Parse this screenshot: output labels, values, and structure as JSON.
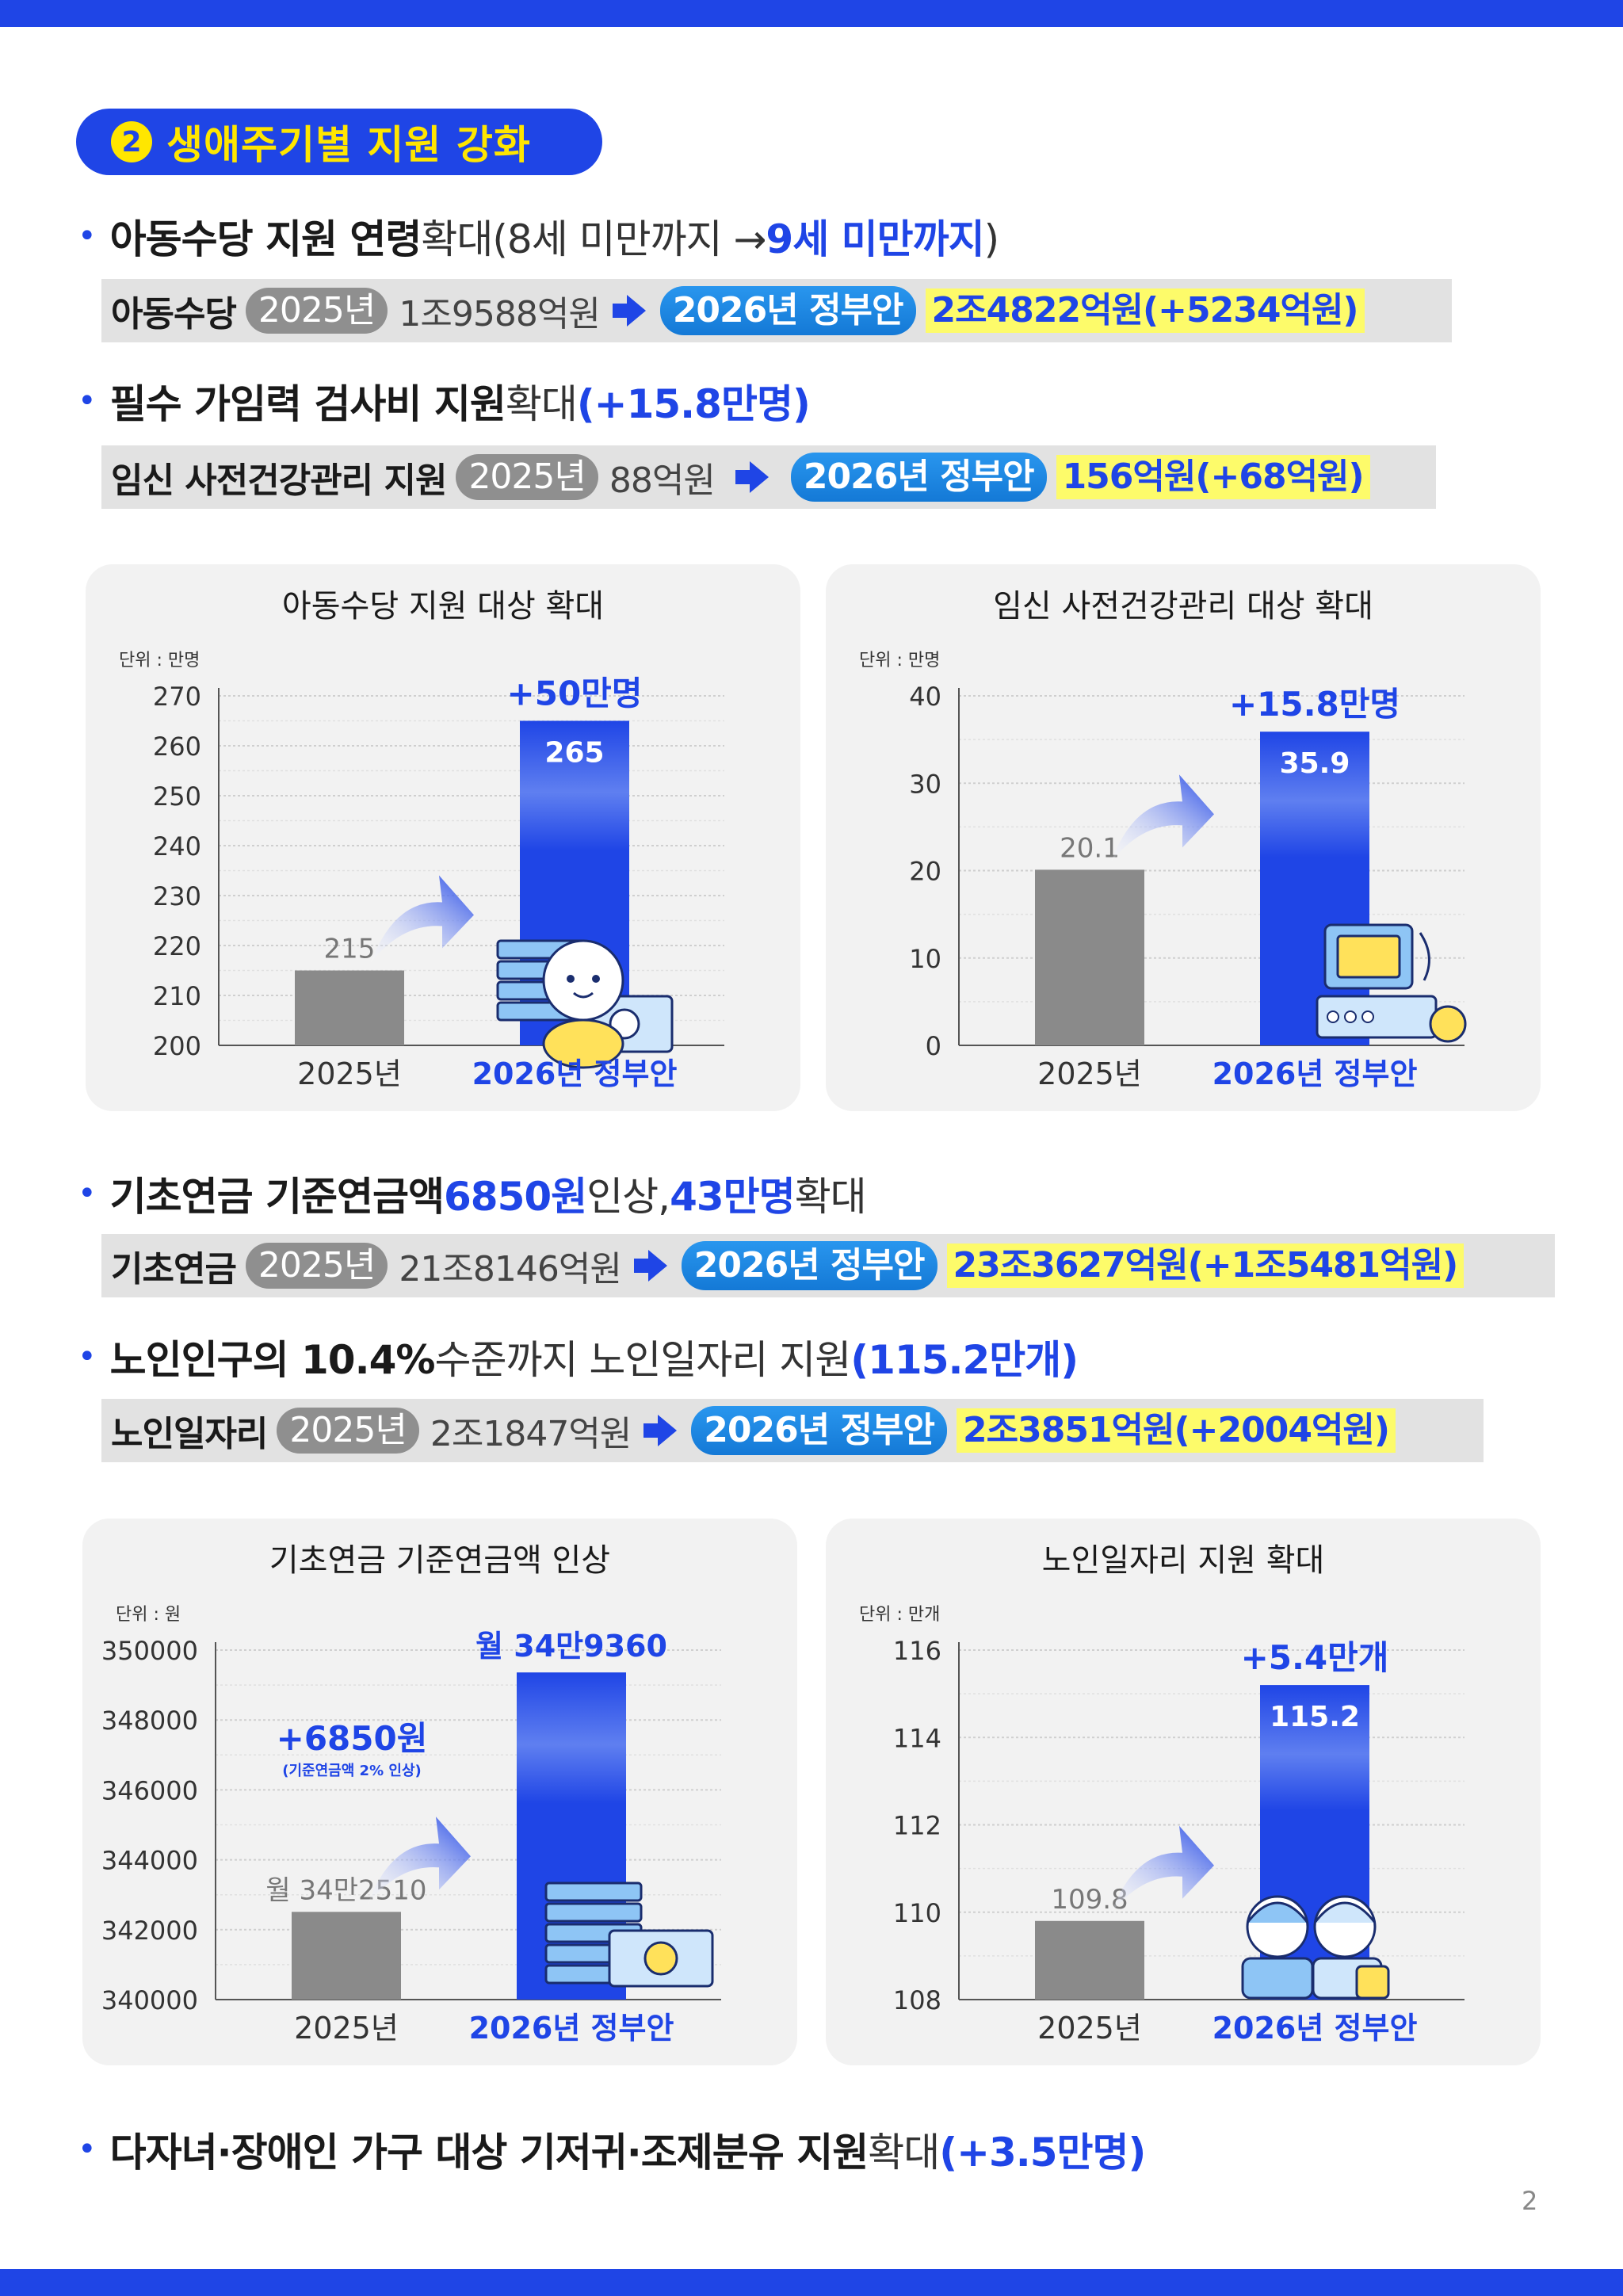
{
  "section": {
    "number": "2",
    "title": "생애주기별 지원 강화"
  },
  "bullets": {
    "b1": {
      "bold": "아동수당 지원 연령",
      "regular": " 확대(8세 미만까지 → ",
      "blue": "9세 미만까지",
      "tail": ")"
    },
    "b2": {
      "bold": "필수 가임력 검사비 지원",
      "regular": " 확대",
      "blue": "(+15.8만명)"
    },
    "b3": {
      "bold": "기초연금 기준연금액",
      "blue1": " 6850원",
      "regular1": " 인상,",
      "blue2": " 43만명",
      "regular2": " 확대"
    },
    "b4": {
      "bold": "노인인구의 10.4%",
      "regular": " 수준까지 노인일자리 지원",
      "blue": "(115.2만개)"
    },
    "b5": {
      "bold": "다자녀·장애인 가구 대상 기저귀·조제분유 지원",
      "regular": " 확대",
      "blue": "(+3.5만명)"
    }
  },
  "infobars": {
    "i1": {
      "name": "아동수당",
      "year": "2025년",
      "old": "1조9588억원",
      "new_label": "2026년 정부안",
      "new": "2조4822억원(+5234억원)"
    },
    "i2": {
      "name": "임신 사전건강관리 지원",
      "year": "2025년",
      "old": "88억원",
      "new_label": "2026년 정부안",
      "new": "156억원(+68억원)"
    },
    "i3": {
      "name": "기초연금",
      "year": "2025년",
      "old": "21조8146억원",
      "new_label": "2026년 정부안",
      "new": "23조3627억원(+1조5481억원)"
    },
    "i4": {
      "name": "노인일자리",
      "year": "2025년",
      "old": "2조1847억원",
      "new_label": "2026년 정부안",
      "new": "2조3851억원(+2004억원)"
    }
  },
  "colors": {
    "accent": "#1f45e6",
    "highlight": "#fdfb6a",
    "pill_blue": "#1f8de6",
    "bar_gray": "#8a8a8a",
    "card_bg": "#f2f2f2"
  },
  "chart_data": [
    {
      "type": "bar",
      "title": "아동수당 지원 대상 확대",
      "unit": "단위 : 만명",
      "categories": [
        "2025년",
        "2026년 정부안"
      ],
      "values": [
        215,
        265
      ],
      "value_labels": [
        "215",
        "265"
      ],
      "ylim": [
        200,
        270
      ],
      "yticks": [
        200,
        210,
        220,
        230,
        240,
        250,
        260,
        270
      ],
      "ytick_labels": [
        "200",
        "210",
        "220",
        "230",
        "240",
        "250",
        "260",
        "270"
      ],
      "annotation": "+50만명",
      "annotation_sub": "",
      "illustration": "baby-and-money-icon"
    },
    {
      "type": "bar",
      "title": "임신 사전건강관리 대상 확대",
      "unit": "단위 : 만명",
      "categories": [
        "2025년",
        "2026년 정부안"
      ],
      "values": [
        20.1,
        35.9
      ],
      "value_labels": [
        "20.1",
        "35.9"
      ],
      "ylim": [
        0,
        40
      ],
      "yticks": [
        0,
        10,
        20,
        30,
        40
      ],
      "ytick_labels": [
        "0",
        "10",
        "20",
        "30",
        "40"
      ],
      "annotation": "+15.8만명",
      "annotation_sub": "",
      "illustration": "ultrasound-machine-icon"
    },
    {
      "type": "bar",
      "title": "기초연금 기준연금액 인상",
      "unit": "단위 : 원",
      "categories": [
        "2025년",
        "2026년 정부안"
      ],
      "values": [
        342510,
        349360
      ],
      "value_labels": [
        "월 34만2510",
        "월 34만9360"
      ],
      "ylim": [
        340000,
        350000
      ],
      "yticks": [
        340000,
        342000,
        344000,
        346000,
        348000,
        350000
      ],
      "ytick_labels": [
        "340000",
        "342000",
        "344000",
        "346000",
        "348000",
        "350000"
      ],
      "annotation": "+6850원",
      "annotation_sub": "(기준연금액 2% 인상)",
      "illustration": "coins-and-bill-icon"
    },
    {
      "type": "bar",
      "title": "노인일자리 지원 확대",
      "unit": "단위 : 만개",
      "categories": [
        "2025년",
        "2026년 정부안"
      ],
      "values": [
        109.8,
        115.2
      ],
      "value_labels": [
        "109.8",
        "115.2"
      ],
      "ylim": [
        108,
        116
      ],
      "yticks": [
        108,
        110,
        112,
        114,
        116
      ],
      "ytick_labels": [
        "108",
        "110",
        "112",
        "114",
        "116"
      ],
      "annotation": "+5.4만개",
      "annotation_sub": "",
      "illustration": "senior-workers-icon"
    }
  ],
  "page_number": "2"
}
